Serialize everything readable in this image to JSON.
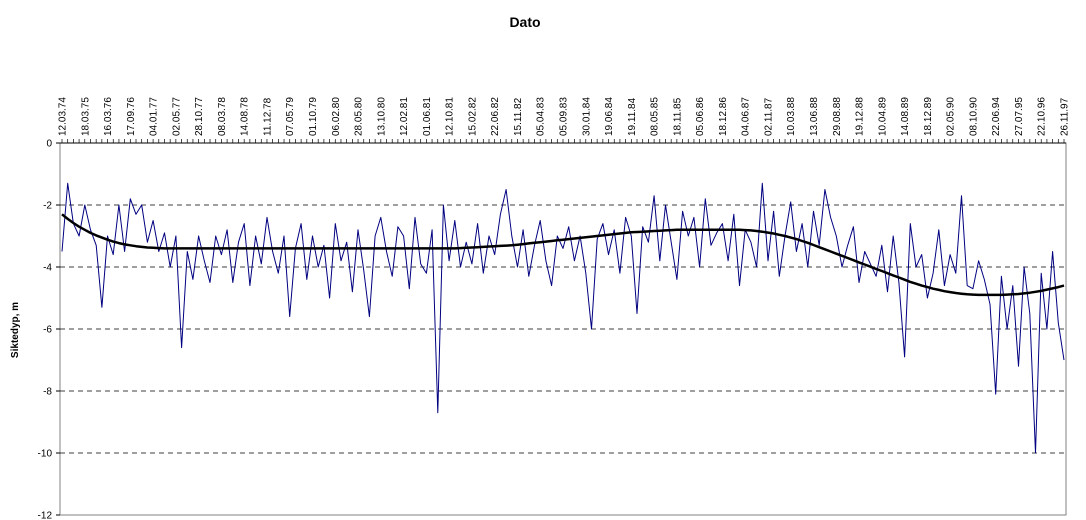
{
  "chart_data": {
    "type": "line",
    "title": "Dato",
    "y_label": "Siktedyp, m",
    "categories": [
      "12.03.74",
      null,
      null,
      null,
      "18.03.75",
      null,
      null,
      null,
      "16.03.76",
      null,
      null,
      null,
      "17.09.76",
      null,
      null,
      null,
      "04.01.77",
      null,
      null,
      null,
      "02.05.77",
      null,
      null,
      null,
      "28.10.77",
      null,
      null,
      null,
      "08.03.78",
      null,
      null,
      null,
      "14.08.78",
      null,
      null,
      null,
      "11.12.78",
      null,
      null,
      null,
      "07.05.79",
      null,
      null,
      null,
      "01.10.79",
      null,
      null,
      null,
      "06.02.80",
      null,
      null,
      null,
      "28.05.80",
      null,
      null,
      null,
      "13.10.80",
      null,
      null,
      null,
      "12.02.81",
      null,
      null,
      null,
      "01.06.81",
      null,
      null,
      null,
      "12.10.81",
      null,
      null,
      null,
      "15.02.82",
      null,
      null,
      null,
      "22.06.82",
      null,
      null,
      null,
      "15.11.82",
      null,
      null,
      null,
      "05.04.83",
      null,
      null,
      null,
      "05.09.83",
      null,
      null,
      null,
      "30.01.84",
      null,
      null,
      null,
      "19.06.84",
      null,
      null,
      null,
      "19.11.84",
      null,
      null,
      null,
      "08.05.85",
      null,
      null,
      null,
      "18.11.85",
      null,
      null,
      null,
      "05.06.86",
      null,
      null,
      null,
      "18.12.86",
      null,
      null,
      null,
      "04.06.87",
      null,
      null,
      null,
      "02.11.87",
      null,
      null,
      null,
      "10.03.88",
      null,
      null,
      null,
      "13.06.88",
      null,
      null,
      null,
      "29.08.88",
      null,
      null,
      null,
      "19.12.88",
      null,
      null,
      null,
      "10.04.89",
      null,
      null,
      null,
      "14.08.89",
      null,
      null,
      null,
      "18.12.89",
      null,
      null,
      null,
      "02.05.90",
      null,
      null,
      null,
      "08.10.90",
      null,
      null,
      null,
      "22.06.94",
      null,
      null,
      null,
      "27.07.95",
      null,
      null,
      null,
      "22.10.96",
      null,
      null,
      null,
      "26.11.97"
    ],
    "series": [
      {
        "color": "#000080",
        "width": 1,
        "values": [
          -3.5,
          -1.3,
          -2.6,
          -3.0,
          -2.0,
          -2.8,
          -3.3,
          -5.3,
          -3.0,
          -3.6,
          -2.0,
          -3.5,
          -1.8,
          -2.3,
          -2.0,
          -3.2,
          -2.5,
          -3.5,
          -2.9,
          -4.0,
          -3.0,
          -6.6,
          -3.5,
          -4.4,
          -3.0,
          -3.8,
          -4.5,
          -3.0,
          -3.6,
          -2.8,
          -4.5,
          -3.2,
          -2.6,
          -4.6,
          -3.0,
          -3.9,
          -2.4,
          -3.5,
          -4.2,
          -3.0,
          -5.6,
          -3.4,
          -2.6,
          -4.4,
          -3.0,
          -4.0,
          -3.3,
          -5.0,
          -2.6,
          -3.8,
          -3.2,
          -4.8,
          -2.8,
          -4.1,
          -5.6,
          -3.0,
          -2.4,
          -3.5,
          -4.3,
          -2.7,
          -3.0,
          -4.7,
          -2.4,
          -3.9,
          -4.2,
          -2.8,
          -8.7,
          -2.0,
          -3.8,
          -2.5,
          -4.0,
          -3.2,
          -3.9,
          -2.6,
          -4.2,
          -3.0,
          -3.6,
          -2.3,
          -1.5,
          -3.0,
          -4.0,
          -2.8,
          -4.3,
          -3.3,
          -2.5,
          -3.8,
          -4.6,
          -3.0,
          -3.4,
          -2.7,
          -3.8,
          -3.0,
          -4.2,
          -6.0,
          -3.1,
          -2.6,
          -3.6,
          -2.8,
          -4.2,
          -2.4,
          -3.0,
          -5.5,
          -2.7,
          -3.2,
          -1.7,
          -3.8,
          -2.0,
          -3.2,
          -4.4,
          -2.2,
          -3.0,
          -2.4,
          -4.0,
          -1.8,
          -3.3,
          -2.9,
          -2.6,
          -3.8,
          -2.3,
          -4.6,
          -2.8,
          -3.2,
          -4.0,
          -1.3,
          -3.8,
          -2.2,
          -4.3,
          -3.0,
          -1.9,
          -3.5,
          -2.6,
          -4.0,
          -2.2,
          -3.3,
          -1.5,
          -2.4,
          -3.0,
          -4.0,
          -3.3,
          -2.7,
          -4.5,
          -3.5,
          -3.9,
          -4.3,
          -3.3,
          -4.8,
          -3.0,
          -4.5,
          -6.9,
          -2.6,
          -4.0,
          -3.6,
          -5.0,
          -4.2,
          -2.8,
          -4.6,
          -3.6,
          -4.2,
          -1.7,
          -4.6,
          -4.7,
          -3.8,
          -4.4,
          -5.2,
          -8.1,
          -4.3,
          -6.0,
          -4.6,
          -7.2,
          -4.0,
          -5.5,
          -10.0,
          -4.2,
          -6.0,
          -3.5,
          -5.8,
          -7.0
        ]
      },
      {
        "color": "#000000",
        "width": 2.5,
        "values": [
          -2.3,
          -2.45,
          -2.58,
          -2.7,
          -2.8,
          -2.9,
          -2.98,
          -3.05,
          -3.12,
          -3.18,
          -3.23,
          -3.27,
          -3.3,
          -3.33,
          -3.35,
          -3.37,
          -3.38,
          -3.39,
          -3.4,
          -3.4,
          -3.4,
          -3.4,
          -3.4,
          -3.4,
          -3.4,
          -3.4,
          -3.4,
          -3.4,
          -3.4,
          -3.4,
          -3.4,
          -3.4,
          -3.4,
          -3.4,
          -3.4,
          -3.4,
          -3.4,
          -3.4,
          -3.4,
          -3.4,
          -3.4,
          -3.4,
          -3.4,
          -3.4,
          -3.4,
          -3.4,
          -3.4,
          -3.4,
          -3.4,
          -3.4,
          -3.4,
          -3.4,
          -3.4,
          -3.4,
          -3.4,
          -3.4,
          -3.4,
          -3.4,
          -3.4,
          -3.4,
          -3.4,
          -3.4,
          -3.4,
          -3.4,
          -3.4,
          -3.4,
          -3.4,
          -3.4,
          -3.4,
          -3.4,
          -3.39,
          -3.38,
          -3.37,
          -3.36,
          -3.35,
          -3.34,
          -3.33,
          -3.32,
          -3.31,
          -3.3,
          -3.28,
          -3.26,
          -3.24,
          -3.22,
          -3.2,
          -3.18,
          -3.16,
          -3.14,
          -3.12,
          -3.1,
          -3.08,
          -3.06,
          -3.04,
          -3.02,
          -3.0,
          -2.98,
          -2.96,
          -2.94,
          -2.92,
          -2.9,
          -2.88,
          -2.87,
          -2.86,
          -2.85,
          -2.84,
          -2.83,
          -2.82,
          -2.81,
          -2.8,
          -2.8,
          -2.8,
          -2.8,
          -2.8,
          -2.8,
          -2.8,
          -2.8,
          -2.8,
          -2.8,
          -2.8,
          -2.8,
          -2.81,
          -2.82,
          -2.84,
          -2.86,
          -2.89,
          -2.92,
          -2.96,
          -3.0,
          -3.05,
          -3.1,
          -3.16,
          -3.22,
          -3.29,
          -3.36,
          -3.43,
          -3.5,
          -3.57,
          -3.64,
          -3.71,
          -3.78,
          -3.85,
          -3.92,
          -3.99,
          -4.06,
          -4.13,
          -4.2,
          -4.27,
          -4.34,
          -4.41,
          -4.48,
          -4.54,
          -4.6,
          -4.65,
          -4.7,
          -4.74,
          -4.78,
          -4.81,
          -4.84,
          -4.86,
          -4.88,
          -4.89,
          -4.9,
          -4.9,
          -4.9,
          -4.9,
          -4.9,
          -4.89,
          -4.88,
          -4.87,
          -4.85,
          -4.83,
          -4.8,
          -4.77,
          -4.73,
          -4.69,
          -4.65,
          -4.6
        ]
      }
    ],
    "ylim": [
      -12,
      0
    ],
    "yticks": [
      0,
      -2,
      -4,
      -6,
      -8,
      -10,
      -12
    ],
    "grid": true
  }
}
